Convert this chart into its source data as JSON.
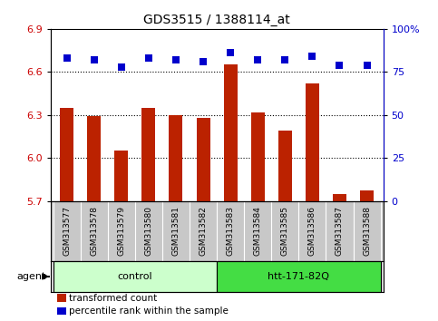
{
  "title": "GDS3515 / 1388114_at",
  "samples": [
    "GSM313577",
    "GSM313578",
    "GSM313579",
    "GSM313580",
    "GSM313581",
    "GSM313582",
    "GSM313583",
    "GSM313584",
    "GSM313585",
    "GSM313586",
    "GSM313587",
    "GSM313588"
  ],
  "transformed_count": [
    6.35,
    6.29,
    6.05,
    6.35,
    6.3,
    6.28,
    6.65,
    6.32,
    6.19,
    6.52,
    5.75,
    5.77
  ],
  "percentile_rank": [
    83,
    82,
    78,
    83,
    82,
    81,
    86,
    82,
    82,
    84,
    79,
    79
  ],
  "bar_color": "#bb2200",
  "dot_color": "#0000cc",
  "ylim_left": [
    5.7,
    6.9
  ],
  "ylim_right": [
    0,
    100
  ],
  "yticks_left": [
    5.7,
    6.0,
    6.3,
    6.6,
    6.9
  ],
  "yticks_right": [
    0,
    25,
    50,
    75,
    100
  ],
  "ytick_labels_right": [
    "0",
    "25",
    "50",
    "75",
    "100%"
  ],
  "hlines": [
    6.0,
    6.3,
    6.6
  ],
  "groups": [
    {
      "label": "control",
      "start": 0,
      "end": 5,
      "color": "#ccffcc",
      "edge_color": "#00aa00"
    },
    {
      "label": "htt-171-82Q",
      "start": 6,
      "end": 11,
      "color": "#44dd44",
      "edge_color": "#00aa00"
    }
  ],
  "agent_label": "agent",
  "legend_bar_label": "transformed count",
  "legend_dot_label": "percentile rank within the sample",
  "bar_width": 0.5,
  "dot_size": 40,
  "background_color": "#ffffff",
  "plot_bg_color": "#ffffff",
  "sample_area_color": "#c8c8c8",
  "tick_label_color_left": "#cc0000",
  "tick_label_color_right": "#0000cc"
}
